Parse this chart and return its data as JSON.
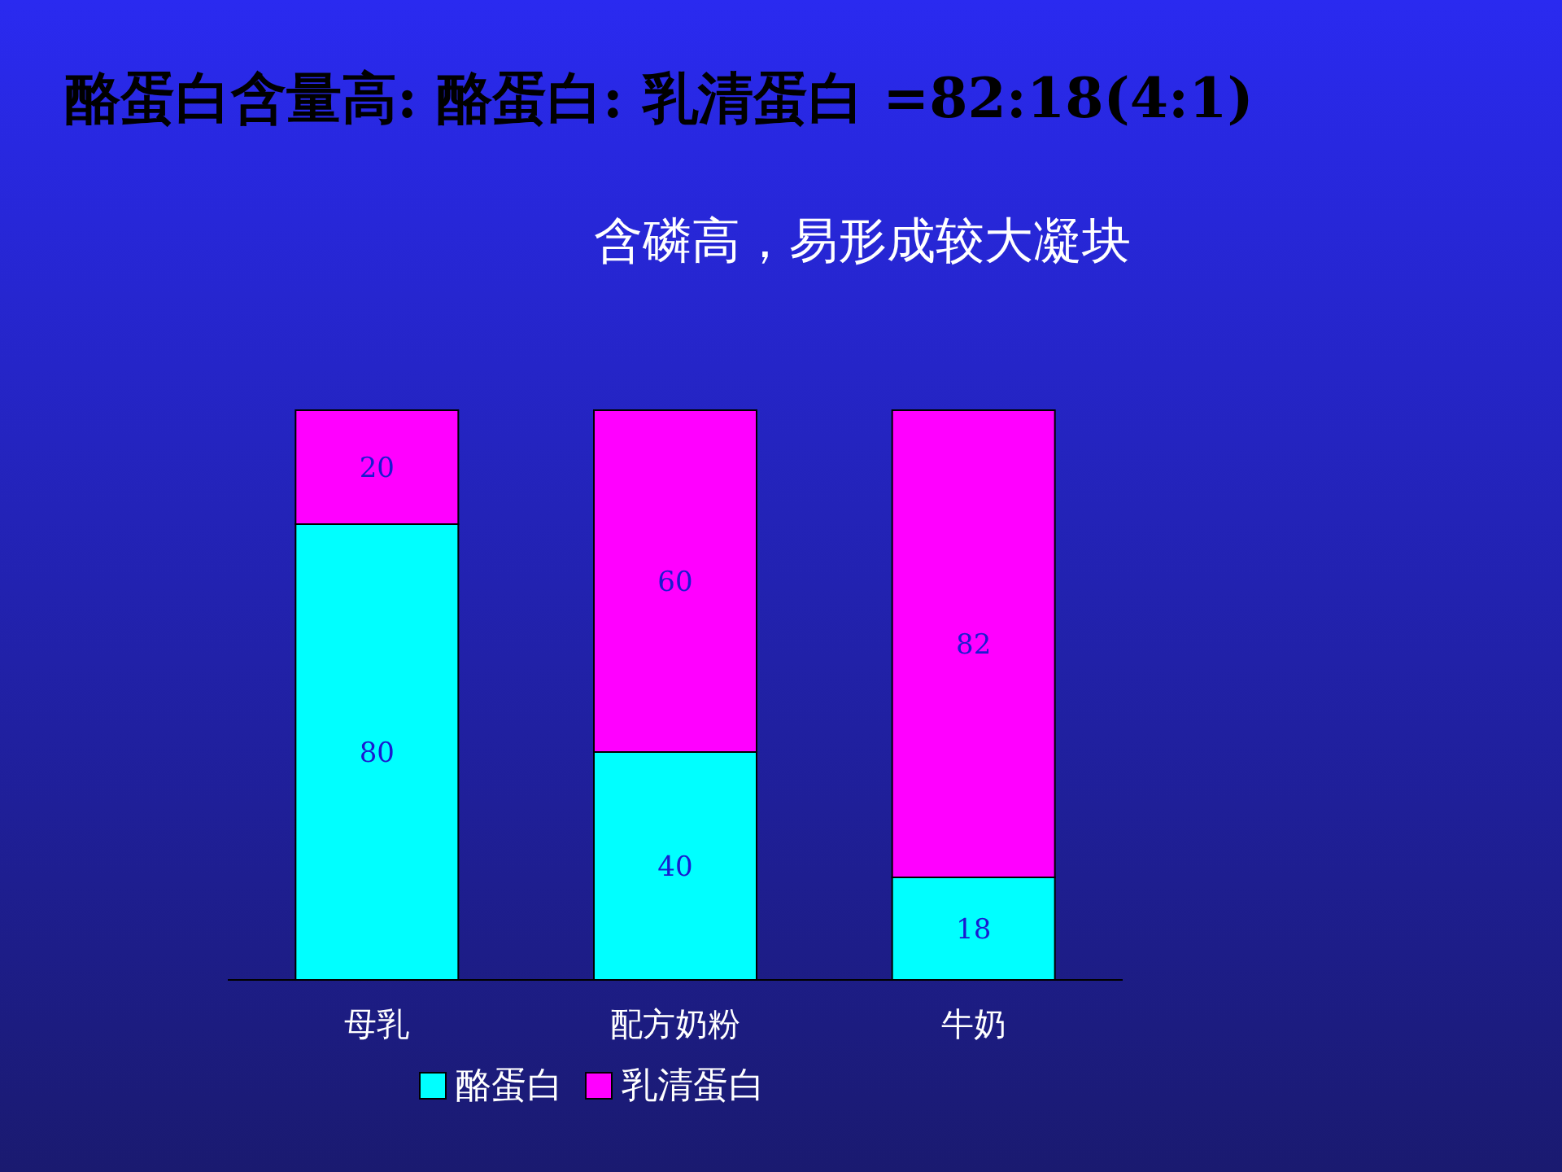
{
  "chart_data": {
    "type": "bar",
    "title": "酪蛋白含量高: 酪蛋白: 乳清蛋白 =82:18(4:1)",
    "subtitle": "含磷高，易形成较大凝块",
    "categories": [
      "母乳",
      "配方奶粉",
      "牛奶"
    ],
    "stacked": true,
    "data_labels": true,
    "legend": "bottom",
    "series": [
      {
        "name": "酪蛋白",
        "color": "#00ffff",
        "values": [
          80,
          40,
          18
        ]
      },
      {
        "name": "乳清蛋白",
        "color": "#ff00ff",
        "values": [
          20,
          60,
          82
        ]
      }
    ]
  }
}
